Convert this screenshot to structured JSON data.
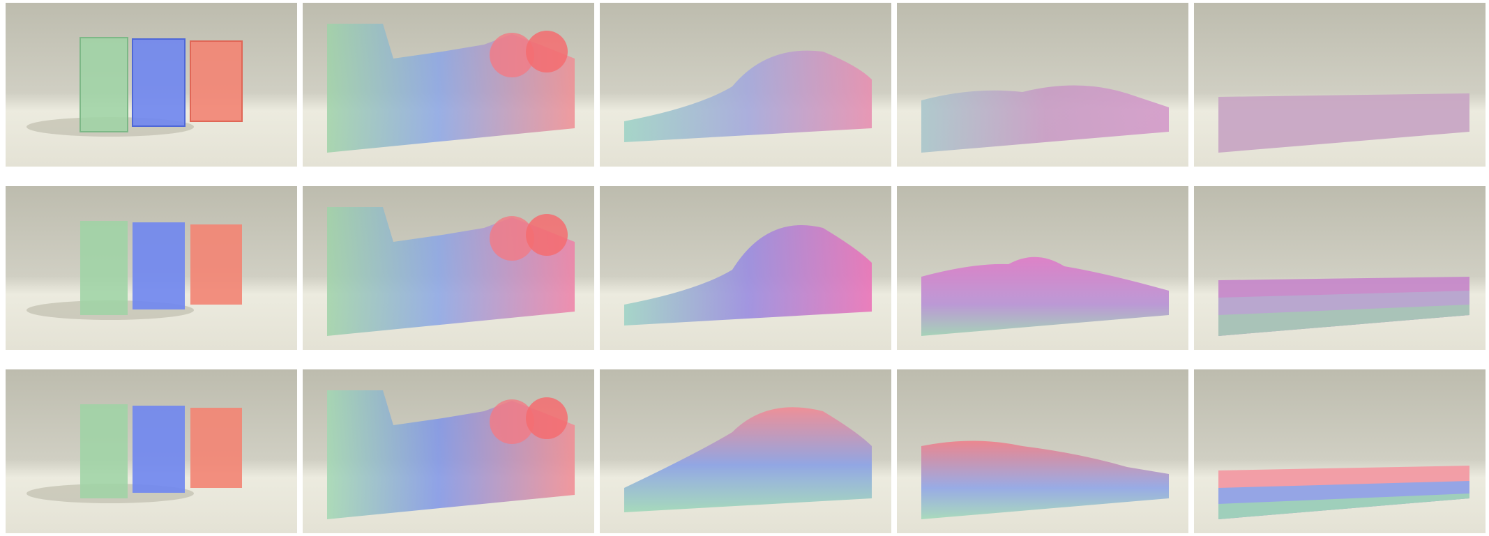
{
  "figure": {
    "rows": [
      {
        "panels": [
          {
            "stage": "initial",
            "mix": [
              0.0,
              0.0,
              0.0
            ]
          },
          {
            "stage": "splash",
            "mix": [
              0.0,
              0.0,
              0.0
            ]
          },
          {
            "stage": "wave",
            "mix": [
              0.0,
              0.0,
              0.0
            ]
          },
          {
            "stage": "settling",
            "mix": [
              0.0,
              0.0,
              0.0
            ]
          },
          {
            "stage": "rest",
            "layers": [
              "#c8a6c4"
            ]
          }
        ]
      },
      {
        "panels": [
          {
            "stage": "initial"
          },
          {
            "stage": "splash"
          },
          {
            "stage": "wave"
          },
          {
            "stage": "settling"
          },
          {
            "stage": "rest",
            "layers": [
              "#c689c9",
              "#b8a9cf",
              "#a8c4b6"
            ]
          }
        ]
      },
      {
        "panels": [
          {
            "stage": "initial"
          },
          {
            "stage": "splash"
          },
          {
            "stage": "wave"
          },
          {
            "stage": "settling"
          },
          {
            "stage": "rest",
            "layers": [
              "#f29aa3",
              "#8fa5e8",
              "#9fd1b8"
            ]
          }
        ]
      }
    ],
    "colors": {
      "green": "#9ed3a4",
      "blue": "#6f86f0",
      "red": "#f38473",
      "backdrop": "#d0cfc3"
    }
  }
}
